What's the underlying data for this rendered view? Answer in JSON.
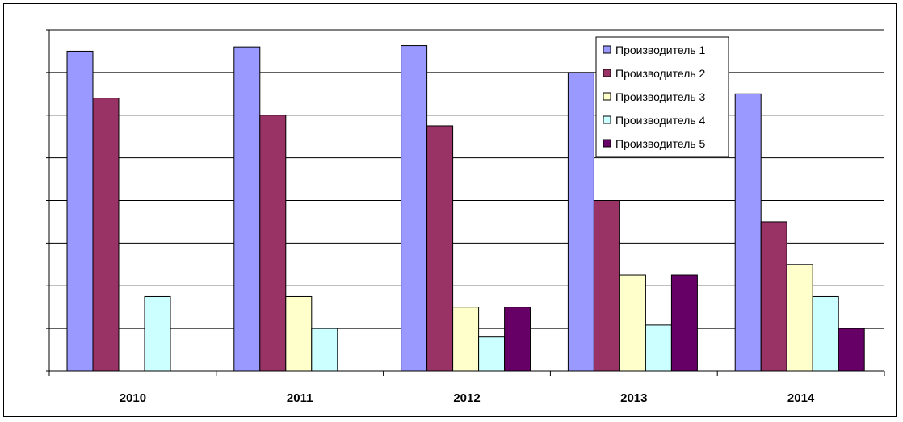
{
  "chart_data": {
    "type": "bar",
    "categories": [
      "2010",
      "2011",
      "2012",
      "2013",
      "2014"
    ],
    "ylim": [
      0,
      8
    ],
    "grid": true,
    "legend_position": "top-right-inside",
    "series": [
      {
        "name": "Производитель 1",
        "color": "#9999FF",
        "values": [
          7.5,
          7.6,
          7.63,
          7.0,
          6.5
        ]
      },
      {
        "name": "Производитель 2",
        "color": "#993366",
        "values": [
          6.4,
          6.0,
          5.75,
          4.0,
          3.5
        ]
      },
      {
        "name": "Производитель 3",
        "color": "#FFFFCC",
        "values": [
          0,
          1.75,
          1.5,
          2.25,
          2.5
        ]
      },
      {
        "name": "Производитель 4",
        "color": "#CCFFFF",
        "values": [
          1.75,
          1.0,
          0.8,
          1.08,
          1.75
        ]
      },
      {
        "name": "Производитель 5",
        "color": "#660066",
        "values": [
          0,
          0,
          1.5,
          2.25,
          1.0
        ]
      }
    ]
  }
}
